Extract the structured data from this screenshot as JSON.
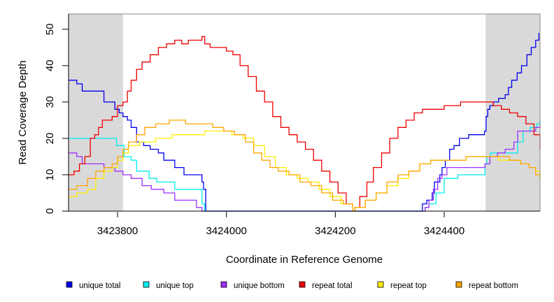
{
  "chart_data": {
    "type": "line",
    "title": "",
    "xlabel": "Coordinate in Reference Genome",
    "ylabel": "Read Coverage Depth",
    "xlim": [
      3423710,
      3424576
    ],
    "ylim": [
      0,
      54.2
    ],
    "x_ticks": [
      3423800,
      3424000,
      3424200,
      3424400
    ],
    "x_tick_labels": [
      "3423800",
      "3424000",
      "3424200",
      "3424400"
    ],
    "y_ticks": [
      0,
      10,
      20,
      30,
      40,
      50
    ],
    "y_tick_labels": [
      "0",
      "10",
      "20",
      "30",
      "40",
      "50"
    ],
    "grid": false,
    "legend_position": "bottom",
    "shaded_regions": [
      [
        3423710,
        3423810
      ],
      [
        3424476,
        3424576
      ]
    ],
    "shade_color": "#d9d9d9",
    "series": [
      {
        "name": "unique total",
        "color": "#0000ee",
        "x": [
          3423710,
          3423725,
          3423735,
          3423765,
          3423775,
          3423790,
          3423795,
          3423803,
          3423810,
          3423818,
          3423825,
          3423835,
          3423848,
          3423860,
          3423875,
          3423885,
          3423905,
          3423922,
          3423955,
          3423958,
          3423962,
          3424357,
          3424360,
          3424368,
          3424378,
          3424382,
          3424392,
          3424396,
          3424402,
          3424410,
          3424418,
          3424428,
          3424445,
          3424474,
          3424477,
          3424480,
          3424484,
          3424490,
          3424500,
          3424512,
          3424518,
          3424524,
          3424534,
          3424542,
          3424552,
          3424560,
          3424568,
          3424574
        ],
        "y": [
          36,
          35,
          33,
          33,
          30,
          30,
          28,
          27,
          26,
          25,
          23,
          19,
          18,
          17,
          16,
          14,
          12,
          10,
          8,
          6,
          0,
          0,
          2,
          3,
          5,
          8,
          10,
          12,
          14,
          17,
          18,
          20,
          21,
          22,
          26,
          28,
          29,
          30,
          31,
          32,
          34,
          36,
          38,
          40,
          43,
          45,
          47,
          49
        ]
      },
      {
        "name": "unique top",
        "color": "#00eeee",
        "x": [
          3423710,
          3423795,
          3423798,
          3423812,
          3423825,
          3423835,
          3423858,
          3423872,
          3423905,
          3423955,
          3423960,
          3424360,
          3424365,
          3424372,
          3424385,
          3424400,
          3424425,
          3424475,
          3424478,
          3424485,
          3424535,
          3424545,
          3424558,
          3424570,
          3424576
        ],
        "y": [
          20,
          20,
          18,
          15,
          14,
          11,
          9,
          8,
          6,
          2,
          0,
          0,
          1,
          2,
          5,
          9,
          10,
          13,
          15,
          16,
          19,
          22,
          23,
          24,
          25
        ]
      },
      {
        "name": "unique bottom",
        "color": "#9b30ff",
        "x": [
          3423710,
          3423725,
          3423735,
          3423745,
          3423775,
          3423795,
          3423810,
          3423825,
          3423845,
          3423862,
          3423885,
          3423905,
          3423945,
          3423955,
          3424358,
          3424365,
          3424372,
          3424380,
          3424388,
          3424396,
          3424405,
          3424475,
          3424484,
          3424498,
          3424512,
          3424528,
          3424535,
          3424568,
          3424576
        ],
        "y": [
          16,
          15,
          13,
          13,
          12,
          11,
          10,
          9,
          7,
          6,
          5,
          3,
          1,
          0,
          0,
          1,
          3,
          6,
          9,
          10,
          12,
          13,
          15,
          16,
          17,
          19,
          22,
          23,
          24
        ]
      },
      {
        "name": "repeat total",
        "color": "#ee0000",
        "x": [
          3423710,
          3423720,
          3423730,
          3423740,
          3423750,
          3423758,
          3423765,
          3423772,
          3423780,
          3423790,
          3423800,
          3423810,
          3423818,
          3423825,
          3423835,
          3423845,
          3423860,
          3423875,
          3423890,
          3423905,
          3423918,
          3423930,
          3423945,
          3423955,
          3423960,
          3423970,
          3423985,
          3424000,
          3424012,
          3424025,
          3424040,
          3424055,
          3424070,
          3424085,
          3424100,
          3424115,
          3424130,
          3424145,
          3424160,
          3424175,
          3424190,
          3424205,
          3424220,
          3424232,
          3424236,
          3424245,
          3424258,
          3424270,
          3424285,
          3424300,
          3424315,
          3424330,
          3424345,
          3424360,
          3424380,
          3424400,
          3424430,
          3424476,
          3424490,
          3424505,
          3424520,
          3424535,
          3424550,
          3424565,
          3424576
        ],
        "y": [
          10,
          11,
          13,
          15,
          20,
          21,
          23,
          25,
          25,
          26,
          29,
          30,
          33,
          36,
          39,
          41,
          43,
          45,
          46,
          47,
          46,
          47,
          47,
          48,
          46,
          45,
          45,
          44,
          43,
          40,
          37,
          33,
          30,
          26,
          23,
          21,
          19,
          17,
          14,
          11,
          8,
          5,
          2,
          0,
          1,
          4,
          8,
          12,
          16,
          20,
          23,
          25,
          27,
          28,
          28,
          29,
          30,
          30,
          29,
          28,
          27,
          26,
          24,
          21,
          17
        ]
      },
      {
        "name": "repeat top",
        "color": "#ffee00",
        "x": [
          3423710,
          3423725,
          3423745,
          3423760,
          3423775,
          3423790,
          3423800,
          3423810,
          3423820,
          3423840,
          3423870,
          3423900,
          3423930,
          3423960,
          3423990,
          3424010,
          3424030,
          3424050,
          3424070,
          3424090,
          3424110,
          3424130,
          3424150,
          3424170,
          3424190,
          3424210,
          3424232,
          3424236,
          3424255,
          3424275,
          3424295,
          3424315,
          3424335,
          3424355,
          3424375,
          3424400,
          3424440,
          3424476,
          3424500,
          3424520,
          3424540,
          3424556,
          3424568,
          3424576
        ],
        "y": [
          4,
          5,
          6,
          9,
          11,
          12,
          14,
          16,
          18,
          19,
          20,
          21,
          21,
          22,
          22,
          21,
          20,
          18,
          15,
          12,
          10,
          9,
          8,
          6,
          4,
          2,
          0,
          1,
          3,
          5,
          7,
          9,
          11,
          13,
          14,
          14,
          15,
          15,
          14,
          14,
          13,
          12,
          11,
          9
        ]
      },
      {
        "name": "repeat bottom",
        "color": "#ffa500",
        "x": [
          3423710,
          3423725,
          3423745,
          3423760,
          3423775,
          3423790,
          3423800,
          3423810,
          3423820,
          3423835,
          3423850,
          3423870,
          3423895,
          3423925,
          3423955,
          3423975,
          3423995,
          3424015,
          3424035,
          3424050,
          3424065,
          3424080,
          3424095,
          3424115,
          3424135,
          3424155,
          3424175,
          3424195,
          3424215,
          3424232,
          3424236,
          3424255,
          3424275,
          3424295,
          3424315,
          3424335,
          3424355,
          3424375,
          3424400,
          3424440,
          3424476,
          3424500,
          3424520,
          3424540,
          3424556,
          3424568,
          3424576
        ],
        "y": [
          6,
          7,
          9,
          11,
          12,
          13,
          15,
          17,
          19,
          21,
          23,
          24,
          25,
          24,
          24,
          23,
          22,
          21,
          19,
          16,
          14,
          12,
          11,
          10,
          8,
          7,
          5,
          3,
          2,
          0,
          1,
          3,
          5,
          8,
          10,
          11,
          13,
          14,
          14,
          15,
          15,
          15,
          14,
          13,
          12,
          10,
          9
        ]
      }
    ]
  },
  "legend": [
    {
      "label": "unique total",
      "color": "#0000ee"
    },
    {
      "label": "unique top",
      "color": "#00eeee"
    },
    {
      "label": "unique bottom",
      "color": "#9b30ff"
    },
    {
      "label": "repeat total",
      "color": "#ee0000"
    },
    {
      "label": "repeat top",
      "color": "#ffee00"
    },
    {
      "label": "repeat bottom",
      "color": "#ffa500"
    }
  ]
}
